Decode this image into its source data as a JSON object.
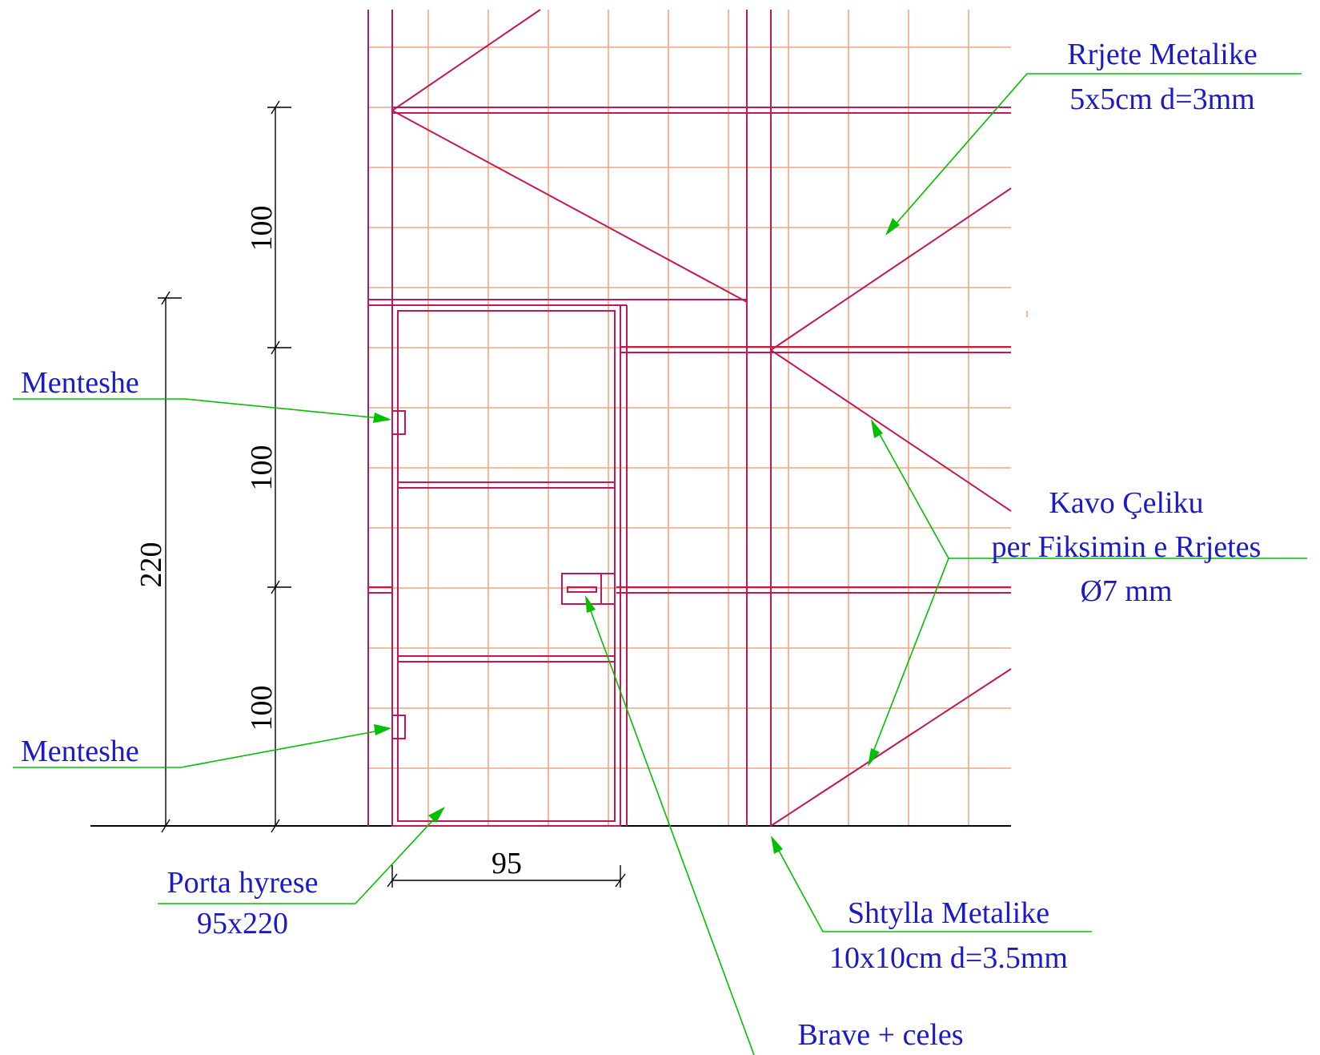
{
  "colors": {
    "mesh": "#f4a582",
    "frame": "#c2185b",
    "leader": "#00c000",
    "label_text": "#1a1ac8",
    "dimension": "#000000"
  },
  "dimensions": {
    "segment_upper": "100",
    "segment_middle": "100",
    "segment_lower": "100",
    "door_height": "220",
    "door_width": "95"
  },
  "labels": {
    "mesh": {
      "line1": "Rrjete Metalike",
      "line2": "5x5cm d=3mm"
    },
    "cable": {
      "line1": "Kavo Çeliku",
      "line2": "per Fiksimin e Rrjetes",
      "line3": "Ø7 mm"
    },
    "hinge_upper": "Menteshe",
    "hinge_lower": "Menteshe",
    "door": {
      "line1": "Porta hyrese",
      "line2": "95x220"
    },
    "post": {
      "line1": "Shtylla Metalike",
      "line2": "10x10cm d=3.5mm"
    },
    "lock": "Brave + celes"
  }
}
